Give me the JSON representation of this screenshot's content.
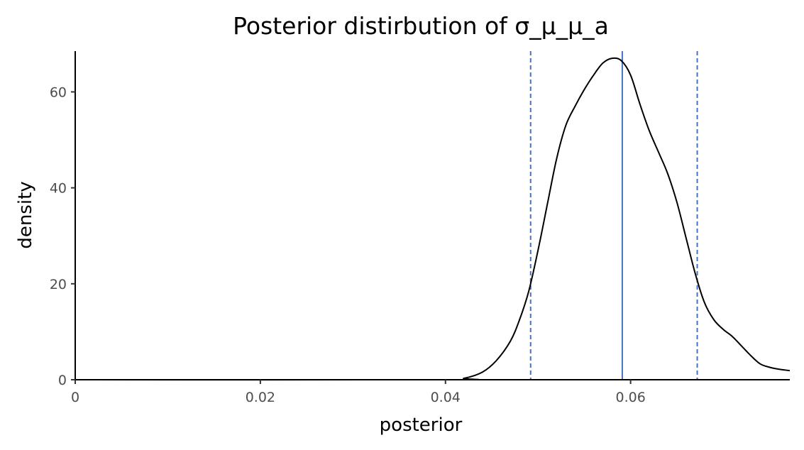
{
  "chart_data": {
    "type": "line",
    "title": "Posterior distirbution of σ_μ_μ_a",
    "xlabel": "posterior",
    "ylabel": "density",
    "xlim": [
      0,
      0.0772
    ],
    "ylim": [
      0,
      68.5
    ],
    "x_ticks": [
      {
        "value": 0,
        "label": "0"
      },
      {
        "value": 0.02,
        "label": "0.02"
      },
      {
        "value": 0.04,
        "label": "0.04"
      },
      {
        "value": 0.06,
        "label": "0.06"
      }
    ],
    "y_ticks": [
      {
        "value": 0,
        "label": "0"
      },
      {
        "value": 20,
        "label": "20"
      },
      {
        "value": 40,
        "label": "40"
      },
      {
        "value": 60,
        "label": "60"
      }
    ],
    "grid": false,
    "series": [
      {
        "x": [
          0,
          0.04,
          0.042,
          0.044,
          0.0455,
          0.047,
          0.048,
          0.049,
          0.05,
          0.051,
          0.052,
          0.053,
          0.054,
          0.055,
          0.056,
          0.057,
          0.058,
          0.059,
          0.06,
          0.061,
          0.062,
          0.063,
          0.064,
          0.065,
          0.066,
          0.067,
          0.068,
          0.069,
          0.07,
          0.071,
          0.072,
          0.073,
          0.074,
          0.075,
          0.076,
          0.0772
        ],
        "y": [
          0,
          0,
          0.3,
          1.6,
          4.0,
          8.0,
          12.5,
          18.5,
          27.0,
          36.5,
          46.0,
          53.0,
          57.0,
          60.5,
          63.5,
          66.0,
          67.0,
          66.5,
          63.5,
          57.5,
          52.0,
          47.5,
          43.0,
          37.0,
          29.5,
          22.0,
          16.0,
          12.5,
          10.5,
          9.0,
          7.0,
          5.0,
          3.3,
          2.6,
          2.2,
          1.9
        ],
        "color": "#000000"
      }
    ],
    "reference_lines": [
      {
        "x": 0.0591,
        "style": "solid",
        "color": "#4472c4"
      },
      {
        "x": 0.0492,
        "style": "dashed",
        "color": "#4472c4"
      },
      {
        "x": 0.0672,
        "style": "dashed",
        "color": "#4472c4"
      }
    ]
  }
}
